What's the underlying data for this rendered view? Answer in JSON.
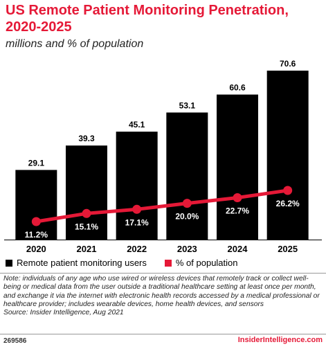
{
  "header": {
    "title": "US Remote Patient Monitoring Penetration, 2020-2025",
    "subtitle": "millions and % of population"
  },
  "chart_data": {
    "type": "bar",
    "categories": [
      "2020",
      "2021",
      "2022",
      "2023",
      "2024",
      "2025"
    ],
    "series": [
      {
        "name": "Remote patient monitoring users",
        "type": "bar",
        "values": [
          29.1,
          39.3,
          45.1,
          53.1,
          60.6,
          70.6
        ],
        "labels": [
          "29.1",
          "39.3",
          "45.1",
          "53.1",
          "60.6",
          "70.6"
        ],
        "color": "#000000"
      },
      {
        "name": "% of population",
        "type": "line",
        "values": [
          11.2,
          15.1,
          17.1,
          20.0,
          22.7,
          26.2
        ],
        "labels": [
          "11.2%",
          "15.1%",
          "17.1%",
          "20.0%",
          "22.7%",
          "26.2%"
        ],
        "color": "#e51937"
      }
    ],
    "legend_position": "bottom-left",
    "grid": false
  },
  "footnote": {
    "note": "Note: individuals of any age who use wired or wireless devices that remotely track or collect well-being or medical data from the user outside a traditional healthcare setting at least once per month, and exchange it via the internet with electronic health records accessed by a medical professional or healthcare provider; includes wearable devices, home health devices, and sensors",
    "source": "Source: Insider Intelligence, Aug 2021",
    "chart_id": "269586",
    "brand": "InsiderIntelligence.com"
  },
  "colors": {
    "accent": "#e51937",
    "bar": "#000000"
  }
}
